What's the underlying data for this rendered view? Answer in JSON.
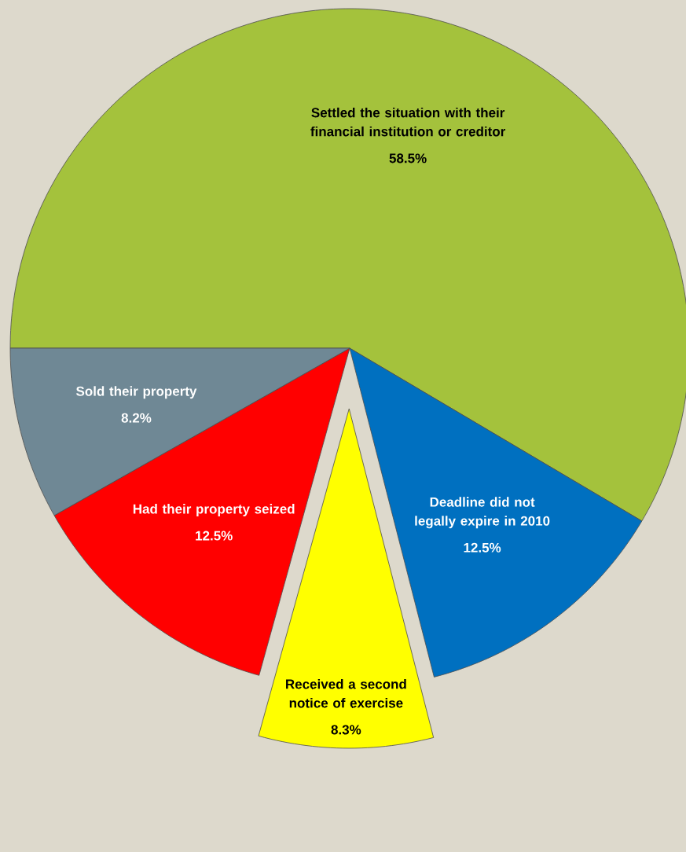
{
  "chart_data": {
    "type": "pie",
    "categories": [
      "Settled the situation with their financial institution or creditor",
      "Deadline did not legally expire in 2010",
      "Received a second notice of exercise",
      "Had their property seized",
      "Sold their property"
    ],
    "values": [
      58.5,
      12.5,
      8.3,
      12.5,
      8.2
    ],
    "colors": [
      "#a4c23c",
      "#0070c0",
      "#ffff00",
      "#ff0000",
      "#6f8895"
    ],
    "value_labels": [
      "58.5%",
      "12.5%",
      "8.3%",
      "12.5%",
      "8.2%"
    ]
  }
}
